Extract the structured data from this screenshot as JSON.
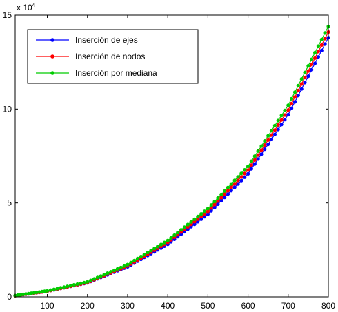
{
  "chart_data": {
    "type": "line",
    "x_ticks": [
      100,
      200,
      300,
      400,
      500,
      600,
      700,
      800
    ],
    "y_ticks": [
      0,
      5,
      10,
      15
    ],
    "y_exponent_label": "x 10",
    "y_exponent_power": "4",
    "xlim": [
      20,
      800
    ],
    "ylim": [
      0,
      15
    ],
    "grid": false,
    "legend_position": "top-left",
    "series": [
      {
        "name": "Inserción de ejes",
        "color": "#0000ff",
        "x": [
          20,
          100,
          200,
          300,
          400,
          500,
          600,
          700,
          800
        ],
        "y": [
          0.06,
          0.3,
          0.75,
          1.6,
          2.8,
          4.4,
          6.55,
          9.7,
          13.8
        ]
      },
      {
        "name": "Inserción de nodos",
        "color": "#ff0000",
        "x": [
          20,
          100,
          200,
          300,
          400,
          500,
          600,
          700,
          800
        ],
        "y": [
          0.06,
          0.3,
          0.76,
          1.65,
          2.9,
          4.55,
          6.75,
          9.95,
          14.1
        ]
      },
      {
        "name": "Inserción por mediana",
        "color": "#00cc00",
        "x": [
          20,
          100,
          200,
          300,
          400,
          500,
          600,
          700,
          800
        ],
        "y": [
          0.07,
          0.32,
          0.8,
          1.72,
          3.0,
          4.7,
          6.95,
          10.2,
          14.4
        ]
      }
    ]
  }
}
